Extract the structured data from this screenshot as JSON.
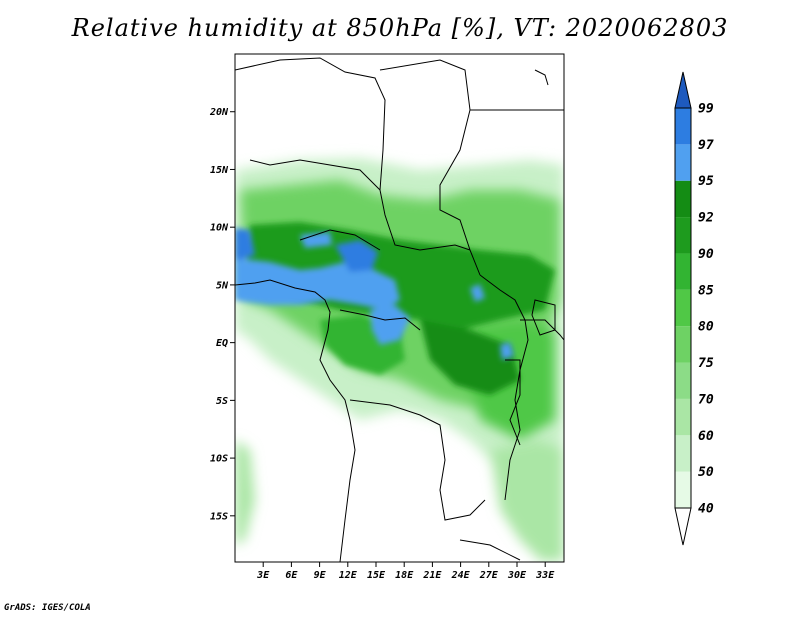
{
  "title": "Relative humidity at 850hPa [%], VT: 2020062803",
  "credit": "GrADS: IGES/COLA",
  "map": {
    "lat_range": [
      -19,
      25
    ],
    "lon_range": [
      0,
      35
    ],
    "lat_ticks": [
      {
        "value": 20,
        "label": "20N"
      },
      {
        "value": 15,
        "label": "15N"
      },
      {
        "value": 10,
        "label": "10N"
      },
      {
        "value": 5,
        "label": "5N"
      },
      {
        "value": 0,
        "label": "EQ"
      },
      {
        "value": -5,
        "label": "5S"
      },
      {
        "value": -10,
        "label": "10S"
      },
      {
        "value": -15,
        "label": "15S"
      }
    ],
    "lon_ticks": [
      {
        "value": 3,
        "label": "3E"
      },
      {
        "value": 6,
        "label": "6E"
      },
      {
        "value": 9,
        "label": "9E"
      },
      {
        "value": 12,
        "label": "12E"
      },
      {
        "value": 15,
        "label": "15E"
      },
      {
        "value": 18,
        "label": "18E"
      },
      {
        "value": 21,
        "label": "21E"
      },
      {
        "value": 24,
        "label": "24E"
      },
      {
        "value": 27,
        "label": "27E"
      },
      {
        "value": 30,
        "label": "30E"
      },
      {
        "value": 33,
        "label": "33E"
      }
    ]
  },
  "colorbar": {
    "levels": [
      "40",
      "50",
      "60",
      "70",
      "75",
      "80",
      "85",
      "90",
      "92",
      "95",
      "97",
      "99"
    ],
    "colors": [
      "#e6fae6",
      "#c8f0c8",
      "#aae6a5",
      "#8cdc87",
      "#6ed264",
      "#50c846",
      "#32b432",
      "#1e9b1e",
      "#148c14",
      "#50a0f0",
      "#2d7de1",
      "#1e5abe"
    ],
    "below_color": "#ffffff",
    "above_color": "#1e5abe"
  },
  "colors": {
    "land_outline": "#000000",
    "frame": "#000000",
    "background": "#ffffff"
  }
}
